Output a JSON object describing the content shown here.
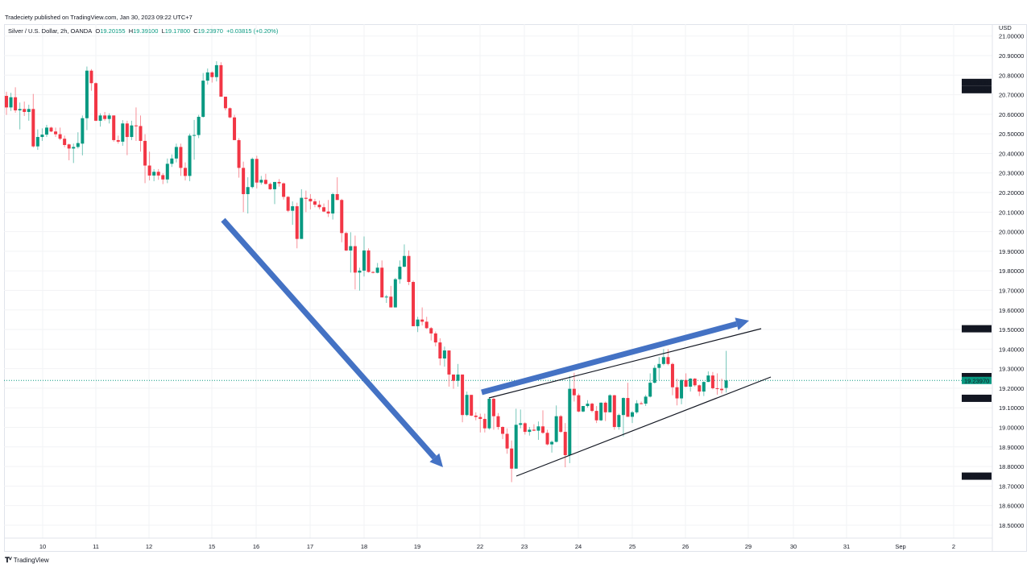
{
  "publisher_line": "Tradeciety published on TradingView.com, Jan 30, 2023 09:22 UTC+7",
  "legend": {
    "symbol": "Silver / U.S. Dollar, 2h, OANDA",
    "open_label": "O",
    "open": "19.20155",
    "high_label": "H",
    "high": "19.39100",
    "low_label": "L",
    "low": "19.17800",
    "close_label": "C",
    "close": "19.23970",
    "change": "+0.03815 (+0.20%)"
  },
  "footer": {
    "logo_text": "TradingView",
    "logo_icon": "tradingview-logo-icon"
  },
  "colors": {
    "up": "#089981",
    "down": "#f23645",
    "drawing_arrow": "#4472c4",
    "drawing_line": "#131722",
    "last_price": "#089981"
  },
  "chart_data": {
    "type": "candlestick",
    "currency_label": "USD",
    "y_range": [
      18.45,
      21.0
    ],
    "y_ticks": [
      "21.00000",
      "20.90000",
      "20.80000",
      "20.70000",
      "20.60000",
      "20.50000",
      "20.40000",
      "20.30000",
      "20.20000",
      "20.10000",
      "20.00000",
      "19.90000",
      "19.80000",
      "19.70000",
      "19.60000",
      "19.50000",
      "19.40000",
      "19.30000",
      "19.20000",
      "19.10000",
      "19.00000",
      "18.90000",
      "18.80000",
      "18.70000",
      "18.60000",
      "18.50000"
    ],
    "x_ticks": [
      "10",
      "11",
      "12",
      "15",
      "16",
      "17",
      "18",
      "19",
      "22",
      "23",
      "24",
      "25",
      "26",
      "29",
      "30",
      "31",
      "Sep",
      "2"
    ],
    "price_labels": [
      {
        "value": "20.74431",
        "style": "dark"
      },
      {
        "value": "20.74431",
        "style": "dark"
      },
      {
        "value": "19.50393",
        "style": "dark"
      },
      {
        "value": "19.25937",
        "style": "dark"
      },
      {
        "value": "19.23970",
        "style": "last"
      },
      {
        "value": "19.14850",
        "style": "dark"
      },
      {
        "value": "18.75069",
        "style": "dark"
      }
    ],
    "last_price": 19.2397,
    "candles_ohlc": [
      [
        20.694,
        20.715,
        20.597,
        20.635
      ],
      [
        20.635,
        20.71,
        20.617,
        20.687
      ],
      [
        20.687,
        20.738,
        20.608,
        20.62
      ],
      [
        20.62,
        20.66,
        20.523,
        20.627
      ],
      [
        20.627,
        20.665,
        20.591,
        20.612
      ],
      [
        20.612,
        20.649,
        20.567,
        20.627
      ],
      [
        20.627,
        20.704,
        20.43,
        20.436
      ],
      [
        20.436,
        20.523,
        20.418,
        20.484
      ],
      [
        20.484,
        20.528,
        20.464,
        20.496
      ],
      [
        20.496,
        20.546,
        20.484,
        20.532
      ],
      [
        20.532,
        20.536,
        20.509,
        20.512
      ],
      [
        20.512,
        20.532,
        20.484,
        20.498
      ],
      [
        20.498,
        20.532,
        20.468,
        20.475
      ],
      [
        20.475,
        20.491,
        20.432,
        20.443
      ],
      [
        20.446,
        20.45,
        20.365,
        20.425
      ],
      [
        20.425,
        20.45,
        20.351,
        20.433
      ],
      [
        20.433,
        20.508,
        20.425,
        20.453
      ],
      [
        20.45,
        20.594,
        20.39,
        20.58
      ],
      [
        20.58,
        20.844,
        20.519,
        20.823
      ],
      [
        20.823,
        20.831,
        20.72,
        20.759
      ],
      [
        20.759,
        20.763,
        20.565,
        20.567
      ],
      [
        20.567,
        20.605,
        20.537,
        20.594
      ],
      [
        20.594,
        20.612,
        20.567,
        20.576
      ],
      [
        20.576,
        20.605,
        20.553,
        20.594
      ],
      [
        20.594,
        20.594,
        20.46,
        20.468
      ],
      [
        20.468,
        20.491,
        20.45,
        20.46
      ],
      [
        20.46,
        20.57,
        20.439,
        20.553
      ],
      [
        20.553,
        20.567,
        20.391,
        20.484
      ],
      [
        20.484,
        20.567,
        20.468,
        20.543
      ],
      [
        20.543,
        20.635,
        20.464,
        20.54
      ],
      [
        20.54,
        20.594,
        20.409,
        20.464
      ],
      [
        20.464,
        20.498,
        20.248,
        20.338
      ],
      [
        20.338,
        20.409,
        20.262,
        20.287
      ],
      [
        20.287,
        20.32,
        20.258,
        20.306
      ],
      [
        20.306,
        20.32,
        20.265,
        20.287
      ],
      [
        20.289,
        20.299,
        20.243,
        20.267
      ],
      [
        20.267,
        20.374,
        20.248,
        20.347
      ],
      [
        20.347,
        20.395,
        20.331,
        20.374
      ],
      [
        20.374,
        20.45,
        20.354,
        20.433
      ],
      [
        20.433,
        20.45,
        20.285,
        20.326
      ],
      [
        20.326,
        20.354,
        20.262,
        20.285
      ],
      [
        20.285,
        20.501,
        20.258,
        20.491
      ],
      [
        20.491,
        20.571,
        20.368,
        20.494
      ],
      [
        20.494,
        20.597,
        20.478,
        20.587
      ],
      [
        20.587,
        20.811,
        20.583,
        20.772
      ],
      [
        20.772,
        20.834,
        20.752,
        20.814
      ],
      [
        20.814,
        20.82,
        20.762,
        20.79
      ],
      [
        20.79,
        20.871,
        20.768,
        20.851
      ],
      [
        20.851,
        20.866,
        20.69,
        20.69
      ],
      [
        20.69,
        20.69,
        20.62,
        20.631
      ],
      [
        20.631,
        20.635,
        20.58,
        20.584
      ],
      [
        20.584,
        20.597,
        20.468,
        20.468
      ],
      [
        20.468,
        20.478,
        20.276,
        20.326
      ],
      [
        20.326,
        20.358,
        20.1,
        20.192
      ],
      [
        20.192,
        20.278,
        20.093,
        20.228
      ],
      [
        20.228,
        20.379,
        20.221,
        20.372
      ],
      [
        20.372,
        20.388,
        20.221,
        20.251
      ],
      [
        20.251,
        20.285,
        20.241,
        20.265
      ],
      [
        20.265,
        20.296,
        20.241,
        20.244
      ],
      [
        20.244,
        20.251,
        20.214,
        20.217
      ],
      [
        20.217,
        20.254,
        20.141,
        20.254
      ],
      [
        20.254,
        20.269,
        20.23,
        20.247
      ],
      [
        20.247,
        20.251,
        20.164,
        20.178
      ],
      [
        20.178,
        20.182,
        20.1,
        20.107
      ],
      [
        20.107,
        20.155,
        20.035,
        20.13
      ],
      [
        20.13,
        20.148,
        19.915,
        19.963
      ],
      [
        19.963,
        20.217,
        19.963,
        20.173
      ],
      [
        20.173,
        20.21,
        20.1,
        20.168
      ],
      [
        20.168,
        20.192,
        20.114,
        20.155
      ],
      [
        20.155,
        20.168,
        20.125,
        20.138
      ],
      [
        20.138,
        20.159,
        20.114,
        20.125
      ],
      [
        20.125,
        20.144,
        20.1,
        20.103
      ],
      [
        20.103,
        20.162,
        20.075,
        20.093
      ],
      [
        20.093,
        20.199,
        20.062,
        20.192
      ],
      [
        20.192,
        20.278,
        20.162,
        20.162
      ],
      [
        20.162,
        20.168,
        19.946,
        19.993
      ],
      [
        19.993,
        20.0,
        19.901,
        19.904
      ],
      [
        19.904,
        19.997,
        19.791,
        19.926
      ],
      [
        19.926,
        19.98,
        19.705,
        19.791
      ],
      [
        19.791,
        19.816,
        19.699,
        19.801
      ],
      [
        19.801,
        19.976,
        19.771,
        19.904
      ],
      [
        19.904,
        19.915,
        19.791,
        19.794
      ],
      [
        19.794,
        19.798,
        19.787,
        19.79
      ],
      [
        19.79,
        19.84,
        19.787,
        19.816
      ],
      [
        19.816,
        19.853,
        19.664,
        19.664
      ],
      [
        19.664,
        19.677,
        19.636,
        19.668
      ],
      [
        19.668,
        19.723,
        19.613,
        19.613
      ],
      [
        19.613,
        19.764,
        19.613,
        19.757
      ],
      [
        19.757,
        19.853,
        19.734,
        19.821
      ],
      [
        19.821,
        19.935,
        19.818,
        19.876
      ],
      [
        19.876,
        19.904,
        19.727,
        19.743
      ],
      [
        19.743,
        19.75,
        19.517,
        19.517
      ],
      [
        19.517,
        19.565,
        19.487,
        19.551
      ],
      [
        19.551,
        19.613,
        19.521,
        19.54
      ],
      [
        19.54,
        19.565,
        19.503,
        19.507
      ],
      [
        19.507,
        19.513,
        19.444,
        19.48
      ],
      [
        19.48,
        19.49,
        19.414,
        19.434
      ],
      [
        19.434,
        19.455,
        19.317,
        19.352
      ],
      [
        19.352,
        19.413,
        19.31,
        19.393
      ],
      [
        19.393,
        19.393,
        19.208,
        19.27
      ],
      [
        19.27,
        19.27,
        19.197,
        19.238
      ],
      [
        19.238,
        19.324,
        19.208,
        19.27
      ],
      [
        19.27,
        19.27,
        19.026,
        19.063
      ],
      [
        19.063,
        19.183,
        19.057,
        19.166
      ],
      [
        19.166,
        19.166,
        19.057,
        19.06
      ],
      [
        19.06,
        19.077,
        19.036,
        19.053
      ],
      [
        19.053,
        19.07,
        18.974,
        19.043
      ],
      [
        19.043,
        19.07,
        18.974,
        18.995
      ],
      [
        18.995,
        19.153,
        18.988,
        19.146
      ],
      [
        19.146,
        19.153,
        18.988,
        19.057
      ],
      [
        19.057,
        19.073,
        18.988,
        19.002
      ],
      [
        19.002,
        19.005,
        18.94,
        18.967
      ],
      [
        18.967,
        18.995,
        18.865,
        18.892
      ],
      [
        18.892,
        18.933,
        18.72,
        18.789
      ],
      [
        18.789,
        19.095,
        18.789,
        19.013
      ],
      [
        19.013,
        19.091,
        18.995,
        19.021
      ],
      [
        19.021,
        19.026,
        18.963,
        18.977
      ],
      [
        18.977,
        19.002,
        18.958,
        18.988
      ],
      [
        18.988,
        19.016,
        18.981,
        18.983
      ],
      [
        18.983,
        19.03,
        18.936,
        19.005
      ],
      [
        19.005,
        19.087,
        18.967,
        18.972
      ],
      [
        18.972,
        18.988,
        18.908,
        18.913
      ],
      [
        18.913,
        18.933,
        18.871,
        18.926
      ],
      [
        18.926,
        19.112,
        18.923,
        19.057
      ],
      [
        19.057,
        19.063,
        18.972,
        18.977
      ],
      [
        18.977,
        19.022,
        18.796,
        18.858
      ],
      [
        18.858,
        19.263,
        18.817,
        19.197
      ],
      [
        19.197,
        19.279,
        19.132,
        19.164
      ],
      [
        19.164,
        19.173,
        19.077,
        19.081
      ],
      [
        19.081,
        19.109,
        19.077,
        19.109
      ],
      [
        19.109,
        19.139,
        19.101,
        19.121
      ],
      [
        19.121,
        19.126,
        19.077,
        19.084
      ],
      [
        19.084,
        19.109,
        19.022,
        19.036
      ],
      [
        19.036,
        19.128,
        19.032,
        19.126
      ],
      [
        19.126,
        19.132,
        19.032,
        19.077
      ],
      [
        19.077,
        19.169,
        19.077,
        19.164
      ],
      [
        19.164,
        19.166,
        18.988,
        19.002
      ],
      [
        19.002,
        19.07,
        18.988,
        19.063
      ],
      [
        19.063,
        19.153,
        18.954,
        19.15
      ],
      [
        19.15,
        19.228,
        19.054,
        19.054
      ],
      [
        19.054,
        19.084,
        19.022,
        19.077
      ],
      [
        19.077,
        19.139,
        19.07,
        19.123
      ],
      [
        19.123,
        19.132,
        19.118,
        19.121
      ],
      [
        19.121,
        19.166,
        19.109,
        19.157
      ],
      [
        19.157,
        19.276,
        19.153,
        19.228
      ],
      [
        19.228,
        19.317,
        19.224,
        19.304
      ],
      [
        19.304,
        19.359,
        19.242,
        19.324
      ],
      [
        19.324,
        19.4,
        19.317,
        19.359
      ],
      [
        19.359,
        19.4,
        19.317,
        19.324
      ],
      [
        19.324,
        19.331,
        19.164,
        19.205
      ],
      [
        19.205,
        19.249,
        19.112,
        19.148
      ],
      [
        19.148,
        19.245,
        19.118,
        19.242
      ],
      [
        19.242,
        19.276,
        19.205,
        19.208
      ],
      [
        19.208,
        19.252,
        19.183,
        19.249
      ],
      [
        19.249,
        19.252,
        19.208,
        19.215
      ],
      [
        19.215,
        19.219,
        19.16,
        19.183
      ],
      [
        19.183,
        19.235,
        19.16,
        19.232
      ],
      [
        19.232,
        19.286,
        19.232,
        19.265
      ],
      [
        19.265,
        19.283,
        19.194,
        19.2
      ],
      [
        19.2,
        19.276,
        19.167,
        19.197
      ],
      [
        19.197,
        19.249,
        19.173,
        19.19
      ],
      [
        19.20155,
        19.391,
        19.178,
        19.2397
      ]
    ],
    "drawings": [
      {
        "type": "arrow",
        "direction": "down"
      },
      {
        "type": "arrow",
        "direction": "up"
      },
      {
        "type": "trendline",
        "role": "upper"
      },
      {
        "type": "trendline",
        "role": "lower"
      }
    ]
  }
}
